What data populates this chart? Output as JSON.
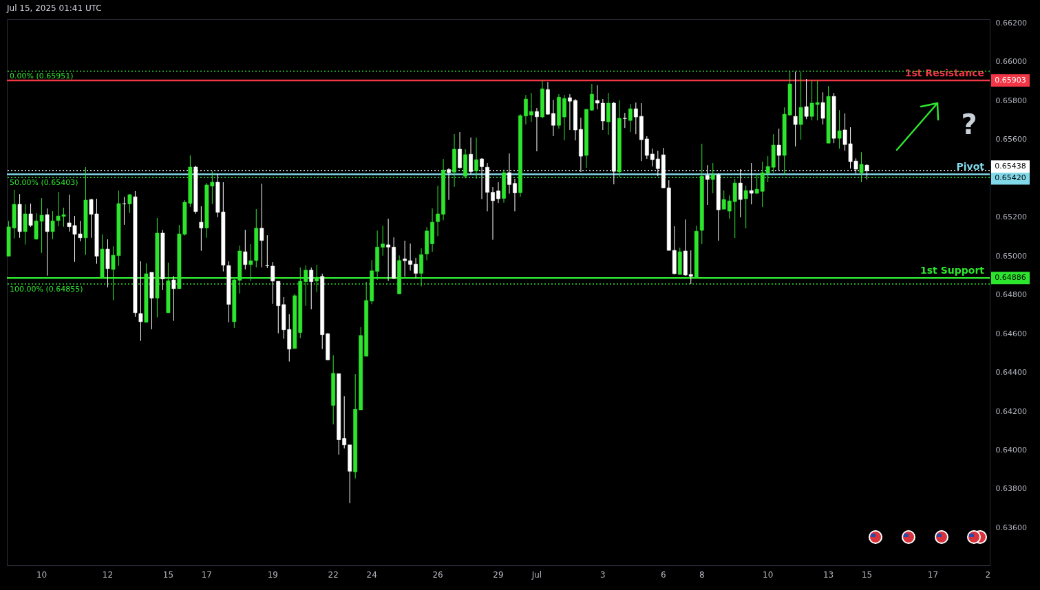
{
  "chart_data": {
    "type": "candlestick",
    "title": "Jul 15, 2025 01:41 UTC",
    "categories": [
      null,
      null,
      null,
      null,
      null,
      null,
      "10",
      null,
      null,
      null,
      null,
      null,
      null,
      null,
      null,
      null,
      null,
      null,
      "12",
      null,
      null,
      null,
      null,
      null,
      null,
      null,
      null,
      null,
      null,
      "15",
      null,
      null,
      null,
      null,
      null,
      null,
      "17",
      null,
      null,
      null,
      null,
      null,
      null,
      null,
      null,
      null,
      null,
      null,
      "19",
      null,
      null,
      null,
      null,
      null,
      null,
      null,
      null,
      null,
      null,
      "22",
      null,
      null,
      null,
      null,
      null,
      null,
      "24",
      null,
      null,
      null,
      null,
      null,
      null,
      null,
      null,
      null,
      null,
      null,
      "26",
      null,
      null,
      null,
      null,
      null,
      null,
      null,
      null,
      null,
      null,
      "29",
      null,
      null,
      null,
      null,
      null,
      null,
      "Jul",
      null,
      null,
      null,
      null,
      null,
      null,
      null,
      null,
      null,
      null,
      null,
      "3",
      null,
      null,
      null,
      null,
      null,
      null,
      null,
      null,
      null,
      null,
      "6",
      null,
      null,
      null,
      null,
      null,
      null,
      "8",
      null,
      null,
      null,
      null,
      null,
      null,
      null,
      null,
      null,
      null,
      null,
      "10",
      null,
      null,
      null,
      null,
      null,
      null,
      null,
      null,
      null,
      null,
      "13",
      null,
      null,
      null,
      null,
      null,
      null,
      "15",
      null,
      null,
      null,
      null,
      null,
      null,
      null,
      null,
      null,
      null,
      null,
      "17",
      null,
      null,
      null,
      null,
      null,
      null,
      null,
      null,
      null,
      "2"
    ],
    "colors": [
      "#2ee52e",
      "#2ee52e",
      "#ffffff",
      "#2ee52e",
      "#ffffff",
      "#2ee52e",
      "#2ee52e",
      "#ffffff",
      "#2ee52e",
      "#2ee52e",
      "#2ee52e",
      "#ffffff",
      "#ffffff",
      "#ffffff",
      "#2ee52e",
      "#ffffff",
      "#ffffff",
      "#2ee52e",
      "#ffffff",
      "#2ee52e",
      "#2ee52e",
      "#ffffff",
      "#2ee52e",
      "#ffffff",
      "#ffffff",
      "#2ee52e",
      "#ffffff",
      "#2ee52e",
      "#ffffff",
      "#2ee52e",
      "#ffffff",
      "#2ee52e",
      "#2ee52e",
      "#2ee52e",
      "#ffffff",
      "#ffffff",
      "#2ee52e",
      "#2ee52e",
      "#ffffff",
      "#ffffff",
      "#ffffff",
      "#2ee52e",
      "#2ee52e",
      "#ffffff",
      "#2ee52e",
      "#2ee52e",
      "#ffffff",
      "#ffffff",
      "#ffffff",
      "#ffffff",
      "#ffffff",
      "#ffffff",
      "#2ee52e",
      "#2ee52e",
      "#2ee52e",
      "#ffffff",
      "#2ee52e",
      "#ffffff",
      "#ffffff",
      "#2ee52e",
      "#ffffff",
      "#ffffff",
      "#ffffff",
      "#2ee52e",
      "#2ee52e",
      "#2ee52e",
      "#2ee52e",
      "#2ee52e",
      "#2ee52e",
      "#ffffff",
      "#ffffff",
      "#2ee52e",
      "#ffffff",
      "#ffffff",
      "#ffffff",
      "#2ee52e",
      "#2ee52e",
      "#2ee52e",
      "#2ee52e",
      "#2ee52e",
      "#ffffff",
      "#2ee52e",
      "#ffffff",
      "#2ee52e",
      "#ffffff",
      "#2ee52e",
      "#ffffff",
      "#ffffff",
      "#ffffff",
      "#ffffff",
      "#2ee52e",
      "#ffffff",
      "#ffffff",
      "#2ee52e",
      "#2ee52e",
      "#2ee52e",
      "#ffffff",
      "#2ee52e",
      "#ffffff",
      "#ffffff",
      "#2ee52e",
      "#2ee52e",
      "#ffffff",
      "#ffffff",
      "#ffffff",
      "#2ee52e",
      "#2ee52e",
      "#ffffff",
      "#ffffff",
      "#2ee52e",
      "#ffffff",
      "#2ee52e",
      "#ffffff",
      "#2ee52e",
      "#ffffff",
      "#ffffff",
      "#ffffff",
      "#ffffff",
      "#ffffff",
      "#ffffff",
      "#ffffff",
      "#ffffff",
      "#2ee52e",
      "#ffffff",
      "#ffffff",
      "#2ee52e",
      "#2ee52e",
      "#ffffff",
      "#2ee52e",
      "#ffffff",
      "#2ee52e",
      "#2ee52e",
      "#2ee52e",
      "#ffffff",
      "#2ee52e",
      "#ffffff",
      "#2ee52e",
      "#2ee52e",
      "#2ee52e",
      "#2ee52e",
      "#ffffff",
      "#2ee52e",
      "#2ee52e",
      "#ffffff",
      "#2ee52e",
      "#ffffff",
      "#2ee52e",
      "#2ee52e",
      "#ffffff",
      "#2ee52e",
      "#ffffff",
      "#2ee52e",
      "#ffffff",
      "#ffffff",
      "#ffffff",
      "#2ee52e",
      "#ffffff",
      null,
      null,
      null,
      null,
      null,
      null,
      null,
      null,
      null,
      null,
      null,
      null,
      null,
      null,
      null,
      null,
      null,
      null,
      null,
      null,
      null,
      null
    ],
    "ohlc": [
      [
        0.64998,
        0.6518,
        0.64998,
        0.65149
      ],
      [
        0.65143,
        0.6534,
        0.6509,
        0.65265
      ],
      [
        0.65265,
        0.65318,
        0.65093,
        0.65125
      ],
      [
        0.65125,
        0.65265,
        0.65058,
        0.65216
      ],
      [
        0.65216,
        0.65269,
        0.65149,
        0.65157
      ],
      [
        0.65086,
        0.65219,
        0.65083,
        0.6518
      ],
      [
        0.65178,
        0.65297,
        0.65015,
        0.65209
      ],
      [
        0.65212,
        0.65244,
        0.64898,
        0.65125
      ],
      [
        0.65125,
        0.6523,
        0.65086,
        0.6518
      ],
      [
        0.65182,
        0.65329,
        0.65153,
        0.65205
      ],
      [
        0.65203,
        0.65248,
        0.6515,
        0.65212
      ],
      [
        0.6517,
        0.65315,
        0.65125,
        0.6515
      ],
      [
        0.65156,
        0.65205,
        0.64969,
        0.65111
      ],
      [
        0.65113,
        0.6518,
        0.65075,
        0.65093
      ],
      [
        0.65093,
        0.65457,
        0.65005,
        0.65287
      ],
      [
        0.6529,
        0.65294,
        0.65093,
        0.65214
      ],
      [
        0.65216,
        0.65294,
        0.64959,
        0.64998
      ],
      [
        0.64888,
        0.6511,
        0.64888,
        0.65035
      ],
      [
        0.65035,
        0.65085,
        0.64838,
        0.64934
      ],
      [
        0.6493,
        0.65049,
        0.64771,
        0.65003
      ],
      [
        0.65001,
        0.65336,
        0.64948,
        0.65269
      ],
      [
        0.65268,
        0.65304,
        0.6516,
        0.65267
      ],
      [
        0.65267,
        0.65318,
        0.65221,
        0.65315
      ],
      [
        0.65304,
        0.65333,
        0.64686,
        0.64707
      ],
      [
        0.64703,
        0.64972,
        0.64562,
        0.64661
      ],
      [
        0.64658,
        0.64961,
        0.64658,
        0.64908
      ],
      [
        0.64915,
        0.64915,
        0.64622,
        0.64782
      ],
      [
        0.64782,
        0.65195,
        0.64683,
        0.65117
      ],
      [
        0.65117,
        0.65134,
        0.64824,
        0.64881
      ],
      [
        0.64707,
        0.64965,
        0.64707,
        0.64872
      ],
      [
        0.64876,
        0.64897,
        0.64665,
        0.64831
      ],
      [
        0.64831,
        0.65159,
        0.64831,
        0.65113
      ],
      [
        0.65111,
        0.65287,
        0.65104,
        0.65276
      ],
      [
        0.6527,
        0.65517,
        0.65252,
        0.65457
      ],
      [
        0.65457,
        0.65464,
        0.65217,
        0.65228
      ],
      [
        0.65173,
        0.65255,
        0.65026,
        0.65143
      ],
      [
        0.65143,
        0.65375,
        0.65093,
        0.65365
      ],
      [
        0.65359,
        0.65435,
        0.65267,
        0.65379
      ],
      [
        0.65379,
        0.65421,
        0.65199,
        0.65224
      ],
      [
        0.65226,
        0.65379,
        0.6492,
        0.64952
      ],
      [
        0.6495,
        0.64972,
        0.64658,
        0.6475
      ],
      [
        0.64661,
        0.6488,
        0.64629,
        0.64876
      ],
      [
        0.64874,
        0.65053,
        0.64806,
        0.65025
      ],
      [
        0.65021,
        0.65134,
        0.6493,
        0.64955
      ],
      [
        0.64955,
        0.6506,
        0.6487,
        0.64975
      ],
      [
        0.64976,
        0.65241,
        0.64941,
        0.65142
      ],
      [
        0.65142,
        0.65372,
        0.64941,
        0.65079
      ],
      [
        0.6495,
        0.65106,
        0.64937,
        0.64949
      ],
      [
        0.64947,
        0.64968,
        0.64753,
        0.6487
      ],
      [
        0.64869,
        0.64869,
        0.64601,
        0.64743
      ],
      [
        0.64749,
        0.64788,
        0.64573,
        0.64619
      ],
      [
        0.64621,
        0.64699,
        0.64456,
        0.6452
      ],
      [
        0.64523,
        0.64805,
        0.64523,
        0.64795
      ],
      [
        0.64605,
        0.6494,
        0.64576,
        0.64869
      ],
      [
        0.64867,
        0.6495,
        0.64743,
        0.64926
      ],
      [
        0.64926,
        0.6494,
        0.64725,
        0.64867
      ],
      [
        0.6487,
        0.64954,
        0.64813,
        0.6489
      ],
      [
        0.64894,
        0.64908,
        0.6452,
        0.64594
      ],
      [
        0.64599,
        0.64603,
        0.64464,
        0.64464
      ],
      [
        0.6423,
        0.64488,
        0.64132,
        0.64395
      ],
      [
        0.64393,
        0.64393,
        0.63976,
        0.64053
      ],
      [
        0.6406,
        0.64277,
        0.64008,
        0.64027
      ],
      [
        0.64027,
        0.64027,
        0.63727,
        0.63891
      ],
      [
        0.63888,
        0.64391,
        0.63854,
        0.6421
      ],
      [
        0.64207,
        0.64633,
        0.64207,
        0.6459
      ],
      [
        0.64483,
        0.64866,
        0.64483,
        0.6477
      ],
      [
        0.64767,
        0.64978,
        0.64751,
        0.64923
      ],
      [
        0.6492,
        0.6513,
        0.64877,
        0.65045
      ],
      [
        0.65044,
        0.65155,
        0.65001,
        0.65061
      ],
      [
        0.65057,
        0.65191,
        0.64871,
        0.65045
      ],
      [
        0.65045,
        0.65095,
        0.6488,
        0.64884
      ],
      [
        0.64804,
        0.65002,
        0.64804,
        0.64976
      ],
      [
        0.64984,
        0.65078,
        0.64893,
        0.64975
      ],
      [
        0.64975,
        0.65063,
        0.64924,
        0.64956
      ],
      [
        0.64957,
        0.6499,
        0.64885,
        0.6491
      ],
      [
        0.6491,
        0.65038,
        0.64843,
        0.65006
      ],
      [
        0.6501,
        0.65148,
        0.64977,
        0.65128
      ],
      [
        0.65062,
        0.65244,
        0.65021,
        0.65173
      ],
      [
        0.65176,
        0.65361,
        0.65101,
        0.65216
      ],
      [
        0.65214,
        0.65499,
        0.65183,
        0.65442
      ],
      [
        0.65444,
        0.65452,
        0.65288,
        0.65428
      ],
      [
        0.65431,
        0.65627,
        0.65355,
        0.65549
      ],
      [
        0.65549,
        0.65637,
        0.65449,
        0.65454
      ],
      [
        0.6541,
        0.65549,
        0.65399,
        0.65521
      ],
      [
        0.65523,
        0.65609,
        0.6542,
        0.65434
      ],
      [
        0.65437,
        0.65609,
        0.65396,
        0.65495
      ],
      [
        0.65499,
        0.65503,
        0.65292,
        0.65459
      ],
      [
        0.65456,
        0.65478,
        0.65229,
        0.65327
      ],
      [
        0.65327,
        0.65354,
        0.65083,
        0.65284
      ],
      [
        0.65334,
        0.65379,
        0.65272,
        0.65294
      ],
      [
        0.65296,
        0.65444,
        0.65274,
        0.65428
      ],
      [
        0.65428,
        0.65527,
        0.6532,
        0.65367
      ],
      [
        0.65373,
        0.65397,
        0.65229,
        0.65324
      ],
      [
        0.65325,
        0.65729,
        0.65304,
        0.65722
      ],
      [
        0.6572,
        0.65828,
        0.65676,
        0.65807
      ],
      [
        0.65725,
        0.65839,
        0.6569,
        0.65743
      ],
      [
        0.65743,
        0.65761,
        0.65538,
        0.65716
      ],
      [
        0.65715,
        0.65901,
        0.65709,
        0.6586
      ],
      [
        0.65856,
        0.65895,
        0.65727,
        0.65729
      ],
      [
        0.65733,
        0.65803,
        0.65616,
        0.65672
      ],
      [
        0.65672,
        0.65832,
        0.65655,
        0.65817
      ],
      [
        0.65715,
        0.65828,
        0.65594,
        0.6581
      ],
      [
        0.65814,
        0.65832,
        0.65648,
        0.65796
      ],
      [
        0.658,
        0.65807,
        0.65594,
        0.65648
      ],
      [
        0.65651,
        0.65711,
        0.65432,
        0.65513
      ],
      [
        0.65517,
        0.65757,
        0.65453,
        0.65754
      ],
      [
        0.6575,
        0.65885,
        0.65747,
        0.65832
      ],
      [
        0.658,
        0.65878,
        0.65754,
        0.65786
      ],
      [
        0.65786,
        0.65807,
        0.65648,
        0.65694
      ],
      [
        0.6569,
        0.65839,
        0.65623,
        0.65786
      ],
      [
        0.65786,
        0.65793,
        0.65368,
        0.65435
      ],
      [
        0.65432,
        0.658,
        0.65404,
        0.65708
      ],
      [
        0.65708,
        0.65736,
        0.65658,
        0.65707
      ],
      [
        0.65697,
        0.65782,
        0.65637,
        0.65757
      ],
      [
        0.65757,
        0.65789,
        0.65626,
        0.65715
      ],
      [
        0.65718,
        0.65786,
        0.65488,
        0.65598
      ],
      [
        0.65602,
        0.65616,
        0.65499,
        0.65517
      ],
      [
        0.65524,
        0.65552,
        0.6546,
        0.65495
      ],
      [
        0.65499,
        0.65541,
        0.6541,
        0.65449
      ],
      [
        0.6552,
        0.65556,
        0.6535,
        0.6535
      ],
      [
        0.6535,
        0.65389,
        0.65028,
        0.65028
      ],
      [
        0.65028,
        0.65152,
        0.64904,
        0.64908
      ],
      [
        0.64904,
        0.65042,
        0.64904,
        0.65021
      ],
      [
        0.65025,
        0.65187,
        0.64897,
        0.64901
      ],
      [
        0.64904,
        0.65028,
        0.64855,
        0.64894
      ],
      [
        0.64889,
        0.65155,
        0.64889,
        0.65127
      ],
      [
        0.65131,
        0.65577,
        0.6506,
        0.6541
      ],
      [
        0.65414,
        0.65467,
        0.65262,
        0.65393
      ],
      [
        0.65393,
        0.65478,
        0.65322,
        0.65418
      ],
      [
        0.65418,
        0.65425,
        0.65078,
        0.65237
      ],
      [
        0.6524,
        0.65336,
        0.6524,
        0.6529
      ],
      [
        0.6523,
        0.65311,
        0.65191,
        0.65283
      ],
      [
        0.65279,
        0.65396,
        0.65092,
        0.65375
      ],
      [
        0.65375,
        0.65446,
        0.65198,
        0.6529
      ],
      [
        0.65294,
        0.65361,
        0.65141,
        0.65336
      ],
      [
        0.65336,
        0.65478,
        0.65265,
        0.65322
      ],
      [
        0.65322,
        0.65421,
        0.65318,
        0.65343
      ],
      [
        0.65332,
        0.65485,
        0.65251,
        0.65428
      ],
      [
        0.65425,
        0.65513,
        0.65379,
        0.6546
      ],
      [
        0.65456,
        0.65626,
        0.65428,
        0.6557
      ],
      [
        0.6557,
        0.65655,
        0.65442,
        0.65517
      ],
      [
        0.65517,
        0.65764,
        0.65417,
        0.65729
      ],
      [
        0.65725,
        0.65951,
        0.65722,
        0.65885
      ],
      [
        0.65718,
        0.65948,
        0.65563,
        0.65676
      ],
      [
        0.65676,
        0.65945,
        0.65598,
        0.65764
      ],
      [
        0.65768,
        0.6591,
        0.65704,
        0.65718
      ],
      [
        0.65718,
        0.65902,
        0.65697,
        0.65786
      ],
      [
        0.65779,
        0.65902,
        0.65697,
        0.65789
      ],
      [
        0.65789,
        0.65842,
        0.65676,
        0.65708
      ],
      [
        0.6558,
        0.65874,
        0.6558,
        0.65821
      ],
      [
        0.65821,
        0.65839,
        0.6558,
        0.65605
      ],
      [
        0.65605,
        0.6575,
        0.65552,
        0.65644
      ],
      [
        0.65648,
        0.65733,
        0.65541,
        0.65573
      ],
      [
        0.65577,
        0.65662,
        0.65449,
        0.65485
      ],
      [
        0.65488,
        0.65502,
        0.65424,
        0.65446
      ],
      [
        0.65428,
        0.65534,
        0.65379,
        0.65471
      ],
      [
        0.65467,
        0.65471,
        0.65393,
        0.65438
      ],
      null,
      null,
      null,
      null,
      null,
      null,
      null,
      null,
      null,
      null,
      null,
      null,
      null,
      null,
      null,
      null,
      null,
      null,
      null,
      null,
      null,
      null
    ],
    "ylim": [
      0.63407,
      0.66218
    ],
    "yticks": [
      {
        "value": 0.662,
        "label": "0.66200"
      },
      {
        "value": 0.66,
        "label": "0.66000"
      },
      {
        "value": 0.658,
        "label": "0.65800"
      },
      {
        "value": 0.656,
        "label": "0.65600"
      },
      {
        "value": 0.652,
        "label": "0.65200"
      },
      {
        "value": 0.65,
        "label": "0.65000"
      },
      {
        "value": 0.648,
        "label": "0.64800"
      },
      {
        "value": 0.646,
        "label": "0.64600"
      },
      {
        "value": 0.644,
        "label": "0.64400"
      },
      {
        "value": 0.642,
        "label": "0.64200"
      },
      {
        "value": 0.64,
        "label": "0.64000"
      },
      {
        "value": 0.638,
        "label": "0.63800"
      },
      {
        "value": 0.636,
        "label": "0.63600"
      }
    ],
    "ref_lines": [
      {
        "axis": "y",
        "value": 0.65903,
        "label": "1st Resistance",
        "color": "#f23645",
        "line_style": "solid"
      },
      {
        "axis": "y",
        "value": 0.6542,
        "label": "Pivot",
        "color": "#80d8e8",
        "line_style": "solid"
      },
      {
        "axis": "y",
        "value": 0.64886,
        "label": "1st Support",
        "color": "#2ee52e",
        "line_style": "solid"
      },
      {
        "axis": "y",
        "value": 0.65438,
        "color": "#ffffff",
        "line_style": "dotted"
      },
      {
        "axis": "y",
        "value": 0.65951,
        "label": "0.00% (0.65951)",
        "color": "#2ee52e",
        "line_style": "dotted"
      },
      {
        "axis": "y",
        "value": 0.65403,
        "label": "50.00% (0.65403)",
        "color": "#2ee52e",
        "line_style": "dotted"
      },
      {
        "axis": "y",
        "value": 0.64855,
        "label": "100.00% (0.64855)",
        "color": "#2ee52e",
        "line_style": "dotted"
      }
    ],
    "annotations": [
      "?",
      "0.65903",
      "0.65420",
      "0.64886",
      "0.65438"
    ]
  }
}
